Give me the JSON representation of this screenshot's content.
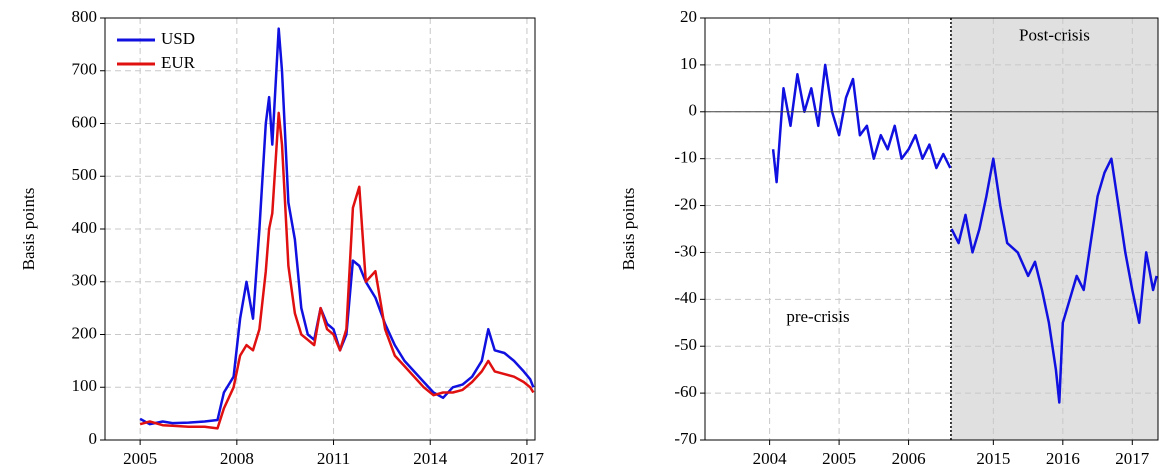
{
  "chart_data": [
    {
      "type": "line",
      "y_label": "Basis points",
      "xlim": [
        2003.91,
        2017.25
      ],
      "xticks": [
        2005,
        2008,
        2011,
        2014,
        2017
      ],
      "ylim": [
        0,
        800
      ],
      "yticks": [
        0,
        100,
        200,
        300,
        400,
        500,
        600,
        700,
        800
      ],
      "grid": true,
      "legend": "top-left",
      "x": [
        2005,
        2005.3,
        2005.7,
        2006,
        2006.5,
        2007,
        2007.4,
        2007.6,
        2007.9,
        2008.1,
        2008.3,
        2008.5,
        2008.7,
        2008.9,
        2009.0,
        2009.1,
        2009.3,
        2009.4,
        2009.6,
        2009.8,
        2010.0,
        2010.2,
        2010.4,
        2010.6,
        2010.8,
        2011.0,
        2011.2,
        2011.4,
        2011.6,
        2011.8,
        2012.0,
        2012.3,
        2012.6,
        2012.9,
        2013.2,
        2013.5,
        2013.8,
        2014.1,
        2014.4,
        2014.7,
        2015.0,
        2015.3,
        2015.6,
        2015.8,
        2016.0,
        2016.3,
        2016.6,
        2016.9,
        2017.1,
        2017.2
      ],
      "series": [
        {
          "name": "USD",
          "color": "#1010e0",
          "values": [
            40,
            30,
            35,
            32,
            33,
            35,
            38,
            90,
            120,
            230,
            300,
            230,
            400,
            600,
            650,
            560,
            780,
            700,
            450,
            380,
            250,
            200,
            190,
            250,
            220,
            210,
            170,
            200,
            340,
            330,
            300,
            270,
            220,
            180,
            150,
            130,
            110,
            90,
            80,
            100,
            105,
            120,
            150,
            210,
            170,
            165,
            150,
            130,
            115,
            100
          ]
        },
        {
          "name": "EUR",
          "color": "#e01010",
          "values": [
            30,
            35,
            28,
            27,
            25,
            25,
            22,
            60,
            100,
            160,
            180,
            170,
            210,
            320,
            400,
            430,
            620,
            560,
            330,
            240,
            200,
            190,
            180,
            250,
            210,
            200,
            170,
            210,
            440,
            480,
            300,
            320,
            210,
            160,
            140,
            120,
            100,
            85,
            90,
            90,
            95,
            110,
            130,
            150,
            130,
            125,
            120,
            110,
            100,
            90
          ]
        }
      ]
    },
    {
      "type": "broken-line",
      "y_label": "Basis points",
      "color": "#1010e0",
      "ylim": [
        -70,
        20
      ],
      "yticks": [
        -70,
        -60,
        -50,
        -40,
        -30,
        -20,
        -10,
        0,
        10,
        20
      ],
      "grid": true,
      "segments": [
        {
          "label": "pre-crisis",
          "xlim": [
            2003.07,
            2006.61
          ],
          "xticks": [
            2004,
            2005,
            2006
          ],
          "x": [
            2004.05,
            2004.1,
            2004.15,
            2004.2,
            2004.3,
            2004.4,
            2004.5,
            2004.6,
            2004.7,
            2004.8,
            2004.9,
            2005.0,
            2005.1,
            2005.2,
            2005.3,
            2005.4,
            2005.5,
            2005.6,
            2005.7,
            2005.8,
            2005.9,
            2006.0,
            2006.1,
            2006.2,
            2006.3,
            2006.4,
            2006.5,
            2006.6
          ],
          "values": [
            -8,
            -15,
            -5,
            5,
            -3,
            8,
            0,
            5,
            -3,
            10,
            0,
            -5,
            3,
            7,
            -5,
            -3,
            -10,
            -5,
            -8,
            -3,
            -10,
            -8,
            -5,
            -10,
            -7,
            -12,
            -9,
            -12
          ]
        },
        {
          "label": "Post-crisis",
          "xlim": [
            2014.39,
            2017.37
          ],
          "xticks": [
            2015,
            2016,
            2017
          ],
          "x": [
            2014.4,
            2014.5,
            2014.6,
            2014.7,
            2014.8,
            2014.9,
            2015.0,
            2015.1,
            2015.2,
            2015.35,
            2015.5,
            2015.6,
            2015.7,
            2015.8,
            2015.9,
            2015.95,
            2016.0,
            2016.1,
            2016.2,
            2016.3,
            2016.4,
            2016.5,
            2016.6,
            2016.7,
            2016.8,
            2016.9,
            2017.0,
            2017.1,
            2017.2,
            2017.3,
            2017.35
          ],
          "values": [
            -25,
            -28,
            -22,
            -30,
            -25,
            -18,
            -10,
            -20,
            -28,
            -30,
            -35,
            -32,
            -38,
            -45,
            -55,
            -62,
            -45,
            -40,
            -35,
            -38,
            -28,
            -18,
            -13,
            -10,
            -20,
            -30,
            -38,
            -45,
            -30,
            -38,
            -35
          ]
        }
      ]
    }
  ]
}
